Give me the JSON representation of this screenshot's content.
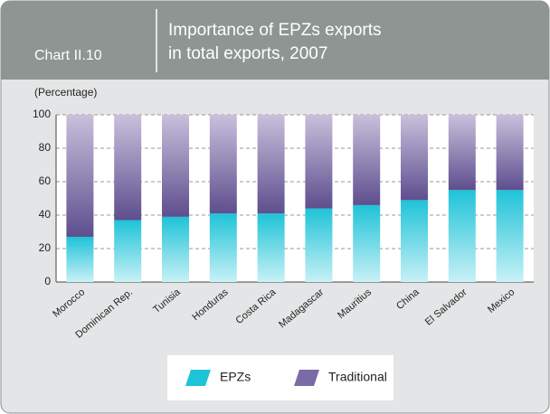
{
  "chart_data": {
    "type": "stacked_bar",
    "label": "Chart II.10",
    "title_lines": [
      "Importance of EPZs exports",
      "in total exports, 2007"
    ],
    "y_axis_label": "(Percentage)",
    "categories": [
      "Morocco",
      "Dominican Rep.",
      "Tunisia",
      "Honduras",
      "Costa Rica",
      "Madagascar",
      "Mauritius",
      "China",
      "El Salvador",
      "Mexico"
    ],
    "series": [
      {
        "name": "EPZs",
        "color": "#1fc3d8",
        "values": [
          27,
          37,
          39,
          41,
          41,
          44,
          46,
          49,
          55,
          55
        ]
      },
      {
        "name": "Traditional",
        "color": "#7a6aa6",
        "values": [
          73,
          63,
          61,
          59,
          59,
          56,
          54,
          51,
          45,
          45
        ]
      }
    ],
    "ylim": [
      0,
      100
    ],
    "yticks": [
      0,
      20,
      40,
      60,
      80,
      100
    ],
    "grid": true
  }
}
